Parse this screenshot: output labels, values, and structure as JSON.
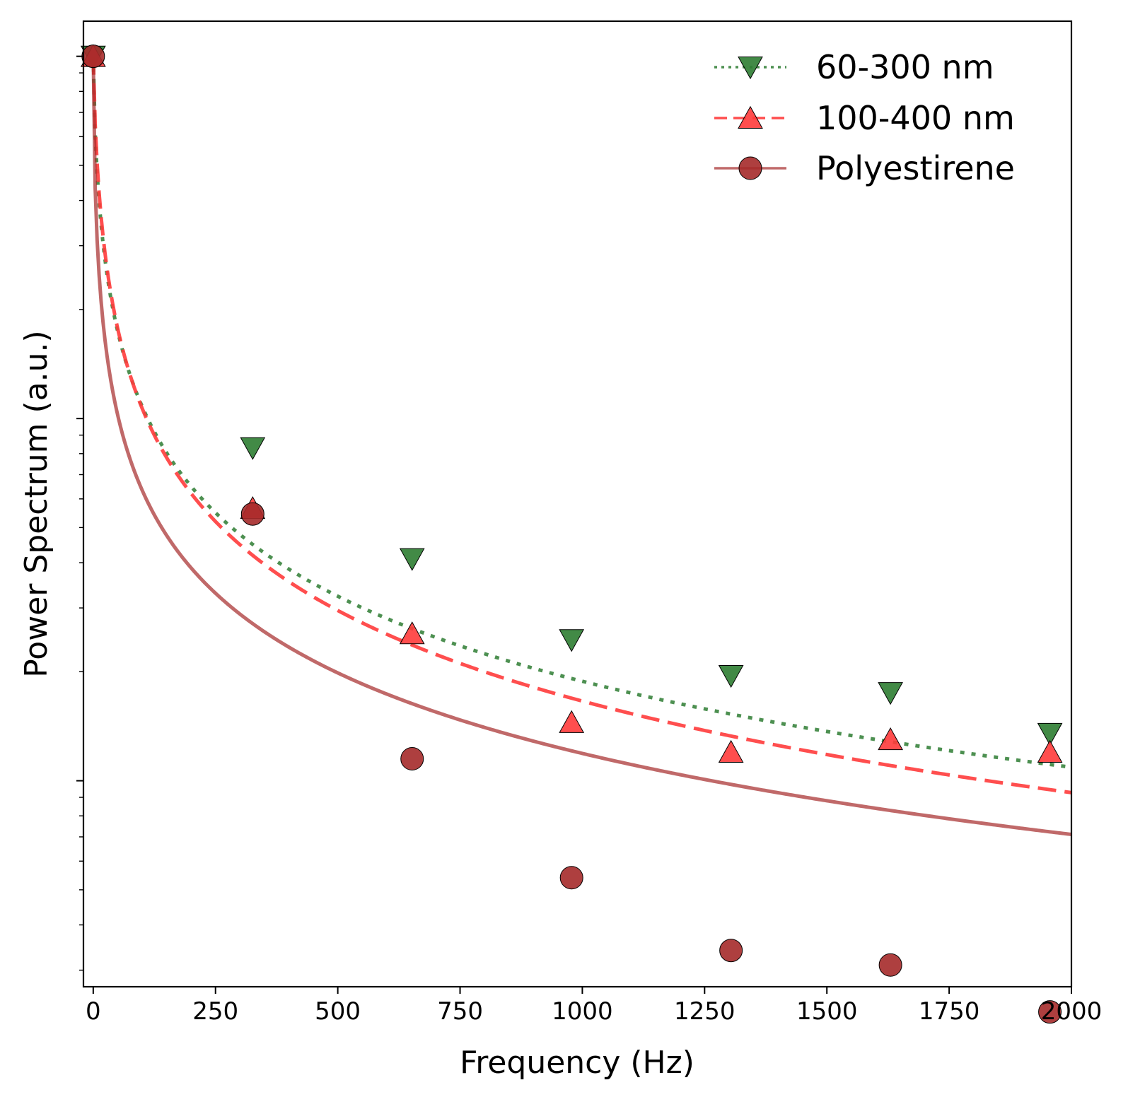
{
  "chart_data": {
    "type": "scatter",
    "title": "",
    "xlabel": "Frequency (Hz)",
    "ylabel": "Power Spectrum (a.u.)",
    "xlim": [
      -20,
      2000
    ],
    "ylim": [
      0.0027,
      1.25
    ],
    "yscale": "log",
    "xticks": [
      0,
      250,
      500,
      750,
      1000,
      1250,
      1500,
      1750,
      2000
    ],
    "xtick_labels": [
      "0",
      "250",
      "500",
      "750",
      "1000",
      "1250",
      "1500",
      "1750",
      "2000"
    ],
    "legend_position": "top-right",
    "series": [
      {
        "name": "60-300 nm",
        "color": "#2e7d32",
        "marker": "triangle-down",
        "line_style": "dotted",
        "x": [
          0,
          326,
          652,
          978,
          1304,
          1630,
          1956
        ],
        "y": [
          1.0,
          0.083,
          0.041,
          0.0245,
          0.0195,
          0.0175,
          0.0135
        ],
        "fit_model": "a/(1+(f/fc)^b)",
        "fit_params": {
          "a": 1.0,
          "fc": 7.14,
          "b": 0.8
        }
      },
      {
        "name": "100-400 nm",
        "color": "#ff3b3b",
        "marker": "triangle-up",
        "line_style": "dashed",
        "x": [
          0,
          326,
          652,
          978,
          1304,
          1630,
          1956
        ],
        "y": [
          1.0,
          0.0565,
          0.0255,
          0.0145,
          0.012,
          0.013,
          0.012
        ],
        "fit_model": "a/(1+(f/fc)^b)",
        "fit_params": {
          "a": 1.0,
          "fc": 8.21,
          "b": 0.85
        }
      },
      {
        "name": "Polyestirene",
        "color": "#a52a2a",
        "marker": "circle",
        "line_style": "solid",
        "x": [
          0,
          326,
          652,
          978,
          1304,
          1630,
          1956
        ],
        "y": [
          1.0,
          0.0545,
          0.0115,
          0.0054,
          0.0034,
          0.0031,
          0.0023
        ],
        "fit_model": "a/(1+(f/fc)^b)",
        "fit_params": {
          "a": 1.0,
          "fc": 2.76,
          "b": 0.75
        }
      }
    ]
  }
}
